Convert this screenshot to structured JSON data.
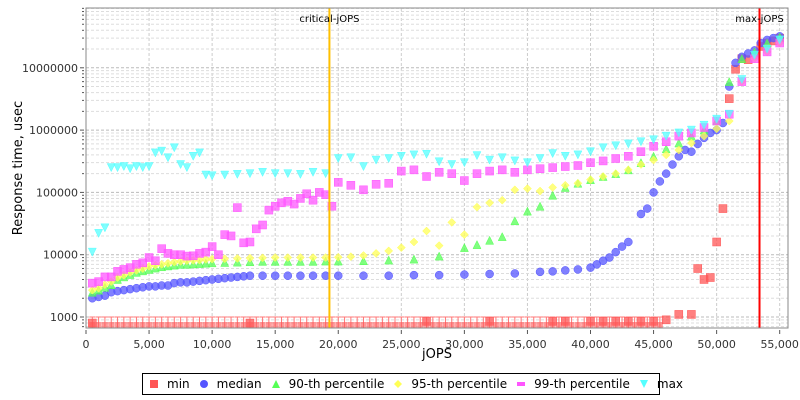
{
  "chart_data": {
    "type": "scatter",
    "title": "",
    "xlabel": "jOPS",
    "ylabel": "Response time, usec",
    "xlim": [
      0,
      55500
    ],
    "ylim_log10": [
      2.55,
      7.6
    ],
    "yscale": "log",
    "x_ticks": [
      {
        "value": 0,
        "label": "0"
      },
      {
        "value": 5000,
        "label": "5,000"
      },
      {
        "value": 10000,
        "label": "10,000"
      },
      {
        "value": 15000,
        "label": "15,000"
      },
      {
        "value": 20000,
        "label": "20,000"
      },
      {
        "value": 25000,
        "label": "25,000"
      },
      {
        "value": 30000,
        "label": "30,000"
      },
      {
        "value": 35000,
        "label": "35,000"
      },
      {
        "value": 40000,
        "label": "40,000"
      },
      {
        "value": 45000,
        "label": "45,000"
      },
      {
        "value": 50000,
        "label": "50,000"
      },
      {
        "value": 55000,
        "label": "55,000"
      }
    ],
    "y_ticks": [
      {
        "value": 1000,
        "label": "1000"
      },
      {
        "value": 10000,
        "label": "10000"
      },
      {
        "value": 100000,
        "label": "100000"
      },
      {
        "value": 1000000,
        "label": "1000000"
      },
      {
        "value": 10000000,
        "label": "10000000"
      }
    ],
    "grid": true,
    "legend_position": "bottom",
    "annotations": [
      {
        "label": "critical-jOPS",
        "x": 19300,
        "color": "#FFC000"
      },
      {
        "label": "max-jOPS",
        "x": 53400,
        "color": "#FF0000"
      }
    ],
    "series": [
      {
        "name": "min",
        "color": "#FF5555",
        "marker": "square",
        "x": [
          500,
          13000,
          27000,
          32000,
          37000,
          38000,
          40000,
          41000,
          42000,
          43000,
          44000,
          45000,
          46000,
          47000,
          48000,
          48500,
          49000,
          49500,
          50000,
          50500,
          51000,
          51500,
          52000,
          52500,
          53000,
          53500,
          54000,
          54500,
          55000
        ],
        "y": [
          800,
          800,
          850,
          850,
          850,
          850,
          850,
          850,
          850,
          850,
          850,
          850,
          900,
          1100,
          1100,
          6000,
          4000,
          4300,
          16000,
          55000,
          3200000,
          9500000,
          14000000,
          13500000,
          16000000,
          22000000,
          25000000,
          27000000,
          30000000
        ]
      },
      {
        "name": "median",
        "color": "#5555FF",
        "marker": "circle",
        "x": [
          500,
          1000,
          1500,
          2000,
          2500,
          3000,
          3500,
          4000,
          4500,
          5000,
          5500,
          6000,
          6500,
          7000,
          7500,
          8000,
          8500,
          9000,
          9500,
          10000,
          10500,
          11000,
          11500,
          12000,
          12500,
          13000,
          14000,
          15000,
          16000,
          17000,
          18000,
          19000,
          20000,
          22000,
          24000,
          26000,
          28000,
          30000,
          32000,
          34000,
          36000,
          37000,
          38000,
          39000,
          40000,
          40500,
          41000,
          41500,
          42000,
          42500,
          43000,
          44000,
          44500,
          45000,
          45500,
          46000,
          46500,
          47000,
          47500,
          48000,
          48500,
          49000,
          49500,
          50000,
          50500,
          51000,
          51500,
          52000,
          52500,
          53000,
          53500,
          54000,
          54500,
          55000
        ],
        "y": [
          2000,
          2100,
          2200,
          2500,
          2600,
          2700,
          2800,
          2900,
          3000,
          3100,
          3100,
          3200,
          3200,
          3500,
          3600,
          3600,
          3700,
          3800,
          3900,
          4000,
          4100,
          4200,
          4300,
          4400,
          4500,
          4600,
          4600,
          4600,
          4600,
          4600,
          4600,
          4600,
          4600,
          4600,
          4600,
          4700,
          4700,
          4800,
          4900,
          5000,
          5300,
          5400,
          5600,
          5800,
          6200,
          7000,
          8000,
          9000,
          11000,
          13500,
          16000,
          45000,
          55000,
          100000,
          150000,
          200000,
          280000,
          380000,
          480000,
          450000,
          600000,
          750000,
          900000,
          1000000,
          1300000,
          5000000,
          12000000,
          15000000,
          17000000,
          19000000,
          25000000,
          28000000,
          30000000,
          32000000
        ]
      },
      {
        "name": "90-th percentile",
        "color": "#55FF55",
        "marker": "triangle-up",
        "x": [
          500,
          1000,
          1500,
          2000,
          2500,
          3000,
          3500,
          4000,
          4500,
          5000,
          5500,
          6000,
          6500,
          7000,
          7500,
          8000,
          8500,
          9000,
          9500,
          10000,
          11000,
          12000,
          13000,
          14000,
          15000,
          16000,
          17000,
          18000,
          19000,
          20000,
          22000,
          24000,
          26000,
          28000,
          30000,
          31000,
          32000,
          33000,
          34000,
          35000,
          36000,
          37000,
          38000,
          39000,
          40000,
          41000,
          42000,
          43000,
          44000,
          45000,
          46000,
          47000,
          48000,
          49000,
          50000,
          51000,
          52000,
          53000,
          54000,
          55000
        ],
        "y": [
          2500,
          2700,
          3000,
          3300,
          4000,
          4400,
          4800,
          5200,
          5500,
          5800,
          6100,
          6400,
          6600,
          6800,
          7000,
          7000,
          7100,
          7200,
          7300,
          7400,
          7500,
          7600,
          7700,
          7800,
          7800,
          7800,
          7800,
          7800,
          7900,
          7900,
          8000,
          8200,
          8500,
          9500,
          13000,
          14500,
          17000,
          19500,
          35000,
          50000,
          60000,
          90000,
          120000,
          140000,
          160000,
          180000,
          200000,
          230000,
          300000,
          380000,
          500000,
          620000,
          800000,
          1000000,
          1400000,
          6000000,
          14000000,
          18000000,
          25000000,
          31000000
        ]
      },
      {
        "name": "95-th percentile",
        "color": "#FFFF55",
        "marker": "diamond",
        "x": [
          500,
          1000,
          1500,
          2000,
          2500,
          3000,
          3500,
          4000,
          4500,
          5000,
          5500,
          6000,
          6500,
          7000,
          7500,
          8000,
          8500,
          9000,
          9500,
          10000,
          11000,
          12000,
          13000,
          14000,
          15000,
          16000,
          17000,
          18000,
          19000,
          20000,
          21000,
          22000,
          23000,
          24000,
          25000,
          26000,
          27000,
          28000,
          29000,
          30000,
          31000,
          32000,
          33000,
          34000,
          35000,
          36000,
          37000,
          38000,
          39000,
          40000,
          41000,
          42000,
          43000,
          44000,
          45000,
          46000,
          47000,
          48000,
          49000,
          50000,
          51000,
          52000,
          53000,
          54000,
          55000
        ],
        "y": [
          2700,
          2900,
          3300,
          3700,
          4300,
          4700,
          5200,
          5600,
          6000,
          6500,
          6800,
          7000,
          7300,
          7600,
          7800,
          8000,
          8100,
          8200,
          8400,
          8500,
          8600,
          8700,
          8800,
          8900,
          9000,
          9000,
          9000,
          9000,
          9000,
          9100,
          9300,
          9700,
          10500,
          11500,
          13000,
          16000,
          24000,
          14000,
          33000,
          21000,
          58000,
          68000,
          75000,
          110000,
          115000,
          105000,
          120000,
          130000,
          140000,
          160000,
          180000,
          200000,
          230000,
          280000,
          330000,
          400000,
          480000,
          620000,
          800000,
          1050000,
          1400000,
          6000000,
          14000000,
          18000000,
          25000000
        ]
      },
      {
        "name": "99-th percentile",
        "color": "#FF55FF",
        "marker": "square",
        "x": [
          500,
          1000,
          1500,
          2000,
          2500,
          3000,
          3500,
          4000,
          4500,
          5000,
          5500,
          6000,
          6500,
          7000,
          7500,
          8000,
          8500,
          9000,
          9500,
          10000,
          10500,
          11000,
          11500,
          12000,
          12500,
          13000,
          13500,
          14000,
          14500,
          15000,
          15500,
          16000,
          16500,
          17000,
          17500,
          18000,
          18500,
          19000,
          19500,
          20000,
          21000,
          22000,
          23000,
          24000,
          25000,
          26000,
          27000,
          28000,
          29000,
          30000,
          31000,
          32000,
          33000,
          34000,
          35000,
          36000,
          37000,
          38000,
          39000,
          40000,
          41000,
          42000,
          43000,
          44000,
          45000,
          46000,
          47000,
          48000,
          49000,
          50000,
          51000,
          52000,
          53000,
          54000,
          55000
        ],
        "y": [
          3500,
          3700,
          4400,
          4400,
          5400,
          5800,
          6200,
          7000,
          7400,
          9000,
          8000,
          12500,
          10500,
          10000,
          10000,
          9500,
          9600,
          10500,
          11000,
          13500,
          10000,
          21000,
          20000,
          57000,
          15500,
          16000,
          26000,
          30000,
          52000,
          60000,
          68000,
          72000,
          65000,
          80000,
          95000,
          75000,
          100000,
          92000,
          60000,
          145000,
          130000,
          110000,
          135000,
          140000,
          220000,
          230000,
          180000,
          210000,
          200000,
          155000,
          200000,
          220000,
          230000,
          210000,
          230000,
          240000,
          250000,
          260000,
          270000,
          300000,
          320000,
          350000,
          380000,
          450000,
          550000,
          650000,
          800000,
          900000,
          1100000,
          1400000,
          1800000,
          6000000,
          14000000,
          18000000,
          25000000
        ]
      },
      {
        "name": "max",
        "color": "#55FFFF",
        "marker": "triangle-down",
        "x": [
          500,
          1000,
          1500,
          2000,
          2500,
          3000,
          3500,
          4000,
          4500,
          5000,
          5500,
          6000,
          6500,
          7000,
          7500,
          8000,
          8500,
          9000,
          9500,
          10000,
          11000,
          12000,
          13000,
          14000,
          15000,
          16000,
          17000,
          18000,
          19000,
          20000,
          21000,
          22000,
          23000,
          24000,
          25000,
          26000,
          27000,
          28000,
          29000,
          30000,
          31000,
          32000,
          33000,
          34000,
          35000,
          36000,
          37000,
          38000,
          39000,
          40000,
          41000,
          42000,
          43000,
          44000,
          45000,
          46000,
          47000,
          48000,
          49000,
          50000,
          51000,
          52000,
          53000,
          54000,
          55000
        ],
        "y": [
          11000,
          22000,
          27000,
          250000,
          250000,
          260000,
          240000,
          260000,
          250000,
          260000,
          430000,
          460000,
          360000,
          520000,
          280000,
          250000,
          380000,
          430000,
          190000,
          185000,
          190000,
          195000,
          200000,
          210000,
          200000,
          200000,
          195000,
          210000,
          200000,
          350000,
          360000,
          260000,
          330000,
          350000,
          380000,
          400000,
          410000,
          310000,
          280000,
          300000,
          390000,
          330000,
          360000,
          320000,
          300000,
          350000,
          420000,
          380000,
          400000,
          450000,
          520000,
          560000,
          600000,
          650000,
          700000,
          800000,
          900000,
          1000000,
          1200000,
          1500000,
          1800000,
          6500000,
          16000000,
          20000000,
          28000000
        ]
      }
    ]
  },
  "legend": {
    "items": [
      {
        "label": "min",
        "color": "#FF5555"
      },
      {
        "label": "median",
        "color": "#5555FF"
      },
      {
        "label": "90-th percentile",
        "color": "#55FF55"
      },
      {
        "label": "95-th percentile",
        "color": "#FFFF55"
      },
      {
        "label": "99-th percentile",
        "color": "#FF55FF"
      },
      {
        "label": "max",
        "color": "#55FFFF"
      }
    ]
  }
}
